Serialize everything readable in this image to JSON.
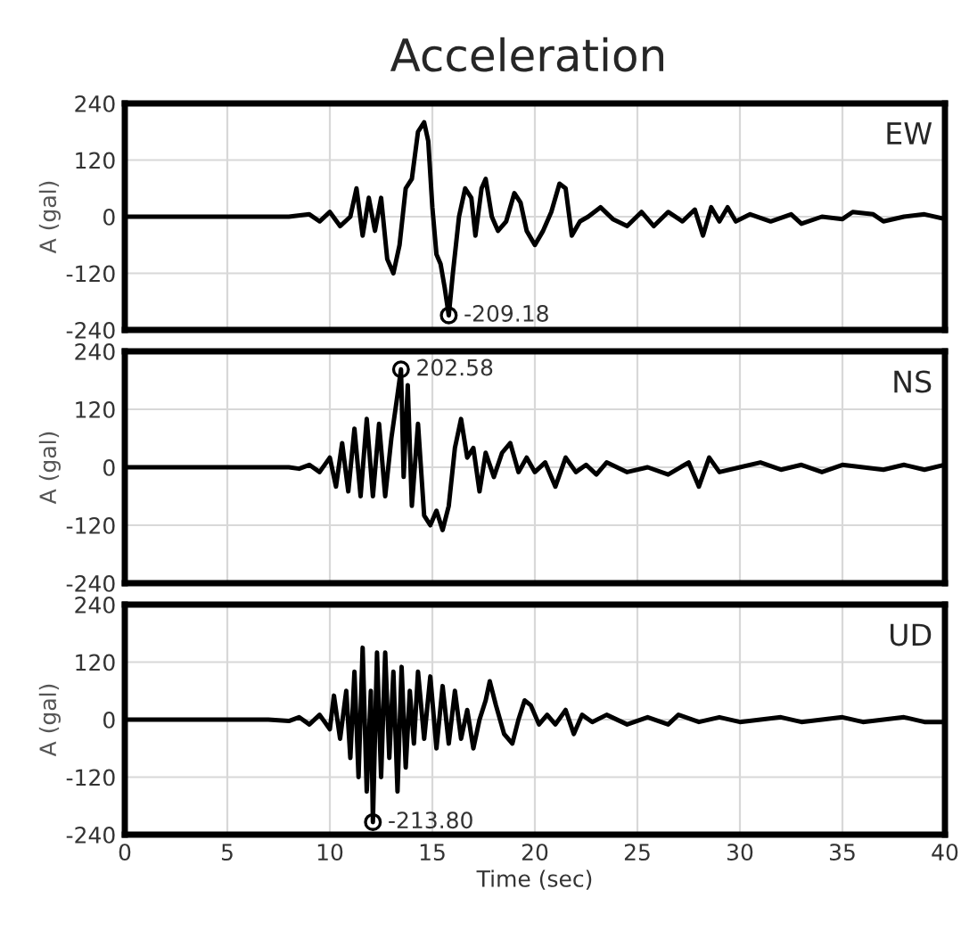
{
  "chart_data": [
    {
      "type": "line",
      "title": "Acceleration",
      "ylabel": "A (gal)",
      "tick_labels": "y",
      "grid": true,
      "xlim": [
        0,
        40
      ],
      "xticks": [
        0,
        5,
        10,
        15,
        20,
        25,
        30,
        35,
        40
      ],
      "ylim": [
        -240,
        240
      ],
      "yticks": [
        -240,
        -120,
        0,
        120,
        240
      ],
      "x": [
        0,
        7,
        8,
        9,
        9.5,
        10,
        10.5,
        11,
        11.3,
        11.6,
        11.9,
        12.2,
        12.5,
        12.8,
        13.1,
        13.4,
        13.7,
        14.0,
        14.3,
        14.6,
        14.8,
        15.0,
        15.2,
        15.4,
        15.6,
        15.8,
        16.0,
        16.3,
        16.6,
        16.9,
        17.1,
        17.4,
        17.6,
        17.9,
        18.2,
        18.6,
        19.0,
        19.3,
        19.6,
        20.0,
        20.4,
        20.8,
        21.2,
        21.5,
        21.8,
        22.2,
        22.6,
        23.2,
        23.8,
        24.5,
        25.2,
        25.8,
        26.5,
        27.2,
        27.8,
        28.2,
        28.6,
        29.0,
        29.4,
        29.8,
        30.5,
        31.5,
        32.5,
        33,
        34,
        35,
        35.5,
        36.5,
        37,
        38,
        39,
        40
      ],
      "series": [
        {
          "name": "EW",
          "color": "#000000",
          "values": [
            0,
            0,
            0,
            5,
            -10,
            10,
            -20,
            0,
            60,
            -40,
            40,
            -30,
            40,
            -90,
            -120,
            -60,
            60,
            80,
            180,
            200,
            160,
            20,
            -80,
            -100,
            -150,
            -209.18,
            -120,
            0,
            60,
            40,
            -40,
            60,
            80,
            0,
            -30,
            -10,
            50,
            30,
            -30,
            -60,
            -30,
            10,
            70,
            60,
            -40,
            -10,
            0,
            20,
            -5,
            -20,
            10,
            -20,
            10,
            -10,
            15,
            -40,
            20,
            -10,
            20,
            -10,
            5,
            -10,
            5,
            -15,
            0,
            -5,
            10,
            5,
            -10,
            0,
            5,
            -5
          ]
        }
      ],
      "annotations": [
        {
          "text": "-209.18",
          "x": 15.8,
          "y": -209.18
        }
      ]
    },
    {
      "type": "line",
      "ylabel": "A (gal)",
      "tick_labels": "y",
      "grid": true,
      "xlim": [
        0,
        40
      ],
      "xticks": [
        0,
        5,
        10,
        15,
        20,
        25,
        30,
        35,
        40
      ],
      "ylim": [
        -240,
        240
      ],
      "yticks": [
        -240,
        -120,
        0,
        120,
        240
      ],
      "x": [
        0,
        8,
        8.5,
        9,
        9.5,
        10,
        10.3,
        10.6,
        10.9,
        11.2,
        11.5,
        11.8,
        12.1,
        12.4,
        12.7,
        13.0,
        13.3,
        13.47,
        13.6,
        13.8,
        14.0,
        14.3,
        14.6,
        14.9,
        15.2,
        15.5,
        15.8,
        16.1,
        16.4,
        16.7,
        17.0,
        17.3,
        17.6,
        18.0,
        18.4,
        18.8,
        19.2,
        19.6,
        20,
        20.5,
        21.0,
        21.5,
        22.0,
        22.5,
        23.0,
        23.5,
        24.5,
        25.5,
        26.5,
        27.5,
        28.0,
        28.5,
        29,
        30,
        31,
        32,
        33,
        34,
        35,
        36,
        37,
        38,
        39,
        40
      ],
      "series": [
        {
          "name": "NS",
          "color": "#000000",
          "values": [
            0,
            0,
            -3,
            5,
            -10,
            20,
            -40,
            50,
            -50,
            80,
            -60,
            100,
            -60,
            90,
            -60,
            60,
            150,
            202.58,
            -20,
            170,
            -80,
            90,
            -100,
            -120,
            -90,
            -130,
            -80,
            40,
            100,
            20,
            40,
            -50,
            30,
            -20,
            30,
            50,
            -10,
            20,
            -10,
            10,
            -40,
            20,
            -10,
            5,
            -15,
            10,
            -10,
            0,
            -15,
            10,
            -40,
            20,
            -10,
            0,
            10,
            -5,
            5,
            -10,
            5,
            0,
            -5,
            5,
            -5,
            5
          ]
        }
      ],
      "annotations": [
        {
          "text": "202.58",
          "x": 13.47,
          "y": 202.58
        }
      ]
    },
    {
      "type": "line",
      "xlabel": "Time (sec)",
      "ylabel": "A (gal)",
      "grid": true,
      "xlim": [
        0,
        40
      ],
      "xticks": [
        0,
        5,
        10,
        15,
        20,
        25,
        30,
        35,
        40
      ],
      "ylim": [
        -240,
        240
      ],
      "yticks": [
        -240,
        -120,
        0,
        120,
        240
      ],
      "x": [
        0,
        7,
        8,
        8.5,
        9,
        9.5,
        10,
        10.2,
        10.5,
        10.8,
        11.0,
        11.2,
        11.4,
        11.6,
        11.8,
        12.0,
        12.1,
        12.3,
        12.5,
        12.7,
        12.9,
        13.1,
        13.3,
        13.5,
        13.7,
        13.9,
        14.1,
        14.3,
        14.6,
        14.9,
        15.2,
        15.5,
        15.8,
        16.1,
        16.4,
        16.7,
        17.0,
        17.3,
        17.6,
        17.8,
        18.1,
        18.5,
        18.9,
        19.2,
        19.5,
        19.8,
        20.2,
        20.6,
        21.0,
        21.5,
        21.9,
        22.3,
        22.8,
        23.5,
        24.5,
        25.5,
        26.5,
        27,
        28,
        29,
        30,
        31,
        32,
        33,
        34,
        35,
        36,
        37,
        38,
        39,
        40
      ],
      "series": [
        {
          "name": "UD",
          "color": "#000000",
          "values": [
            0,
            0,
            -3,
            5,
            -10,
            10,
            -20,
            50,
            -40,
            60,
            -80,
            100,
            -120,
            150,
            -150,
            60,
            -213.8,
            140,
            -120,
            140,
            -80,
            100,
            -150,
            110,
            -100,
            60,
            -50,
            100,
            -40,
            90,
            -60,
            70,
            -50,
            60,
            -40,
            20,
            -60,
            0,
            40,
            80,
            30,
            -30,
            -50,
            0,
            40,
            30,
            -10,
            10,
            -10,
            20,
            -30,
            10,
            -5,
            10,
            -10,
            5,
            -10,
            10,
            -5,
            5,
            -5,
            0,
            5,
            -5,
            0,
            5,
            -5,
            0,
            5,
            -5,
            -5
          ]
        }
      ],
      "annotations": [
        {
          "text": "-213.80",
          "x": 12.1,
          "y": -213.8
        }
      ]
    }
  ]
}
